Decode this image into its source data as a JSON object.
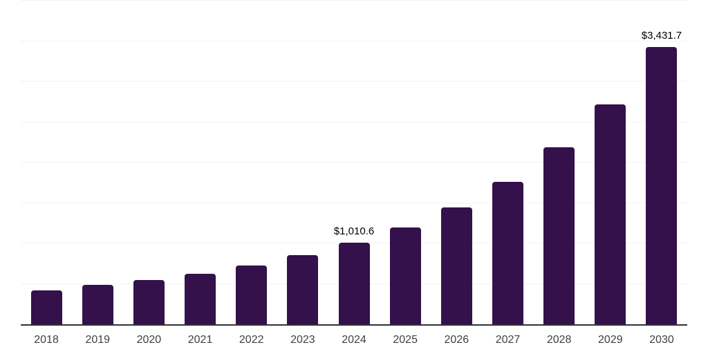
{
  "chart_data": {
    "type": "bar",
    "title": "",
    "xlabel": "",
    "ylabel": "",
    "categories": [
      "2018",
      "2019",
      "2020",
      "2021",
      "2022",
      "2023",
      "2024",
      "2025",
      "2026",
      "2027",
      "2028",
      "2029",
      "2030"
    ],
    "values": [
      420,
      485,
      546,
      625,
      728,
      854,
      1010.6,
      1200,
      1445,
      1765,
      2185,
      2720,
      3431.7
    ],
    "annotations": [
      {
        "category": "2024",
        "text": "$1,010.6"
      },
      {
        "category": "2030",
        "text": "$3,431.7"
      }
    ],
    "ylim": [
      0,
      4000
    ],
    "gridline_interval": 500,
    "grid": "horizontal",
    "legend": "none",
    "colors": {
      "bar": "#34114a",
      "gridline": "#f2f2f5",
      "axis_line": "#323038",
      "tick_label": "#3f3f3f",
      "data_label": "#000000",
      "background": "#ffffff"
    }
  }
}
